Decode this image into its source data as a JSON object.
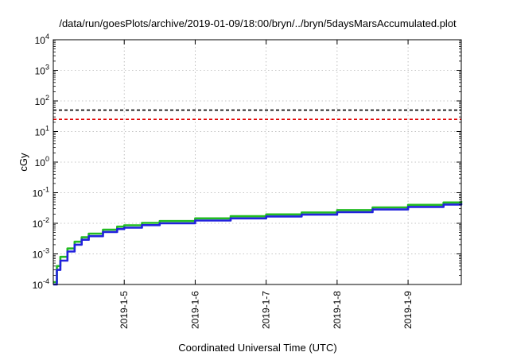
{
  "chart_data": {
    "type": "line",
    "title": "/data/run/goesPlots/archive/2019-01-09/18:00/bryn/../bryn/5daysMarsAccumulated.plot",
    "xlabel": "Coordinated Universal Time (UTC)",
    "ylabel": "cGy",
    "y_scale": "log",
    "ylim": [
      0.0001,
      10000
    ],
    "xlim": [
      "2019-01-04 00:00",
      "2019-01-09 18:00"
    ],
    "grid": true,
    "y_ticks": [
      {
        "base": "10",
        "exp": "-4"
      },
      {
        "base": "10",
        "exp": "-3"
      },
      {
        "base": "10",
        "exp": "-2"
      },
      {
        "base": "10",
        "exp": "-1"
      },
      {
        "base": "10",
        "exp": "0"
      },
      {
        "base": "10",
        "exp": "1"
      },
      {
        "base": "10",
        "exp": "2"
      },
      {
        "base": "10",
        "exp": "3"
      },
      {
        "base": "10",
        "exp": "4"
      }
    ],
    "x_ticks": [
      "2019-1-5",
      "2019-1-6",
      "2019-1-7",
      "2019-1-8",
      "2019-1-9"
    ],
    "reference_lines": [
      {
        "y": 50,
        "color": "#000000",
        "style": "dashed"
      },
      {
        "y": 25,
        "color": "#e00000",
        "style": "dashed"
      }
    ],
    "series": [
      {
        "color": "#22bb22",
        "x": [
          "2019-01-04 00:00",
          "2019-01-04 01:12",
          "2019-01-04 02:24",
          "2019-01-04 04:48",
          "2019-01-04 07:12",
          "2019-01-04 09:36",
          "2019-01-04 12:00",
          "2019-01-04 16:48",
          "2019-01-04 21:36",
          "2019-01-05 00:00",
          "2019-01-05 06:00",
          "2019-01-05 12:00",
          "2019-01-06 00:00",
          "2019-01-06 12:00",
          "2019-01-07 00:00",
          "2019-01-07 12:00",
          "2019-01-08 00:00",
          "2019-01-08 12:00",
          "2019-01-09 00:00",
          "2019-01-09 12:00",
          "2019-01-09 18:00"
        ],
        "values": [
          0.00012,
          0.0004,
          0.0008,
          0.0015,
          0.0025,
          0.0035,
          0.0046,
          0.0062,
          0.0078,
          0.0086,
          0.0103,
          0.0118,
          0.0145,
          0.017,
          0.0195,
          0.0225,
          0.027,
          0.033,
          0.04,
          0.048,
          0.053
        ]
      },
      {
        "color": "#2222dd",
        "x": [
          "2019-01-04 00:00",
          "2019-01-04 01:12",
          "2019-01-04 02:24",
          "2019-01-04 04:48",
          "2019-01-04 07:12",
          "2019-01-04 09:36",
          "2019-01-04 12:00",
          "2019-01-04 16:48",
          "2019-01-04 21:36",
          "2019-01-05 00:00",
          "2019-01-05 06:00",
          "2019-01-05 12:00",
          "2019-01-06 00:00",
          "2019-01-06 12:00",
          "2019-01-07 00:00",
          "2019-01-07 12:00",
          "2019-01-08 00:00",
          "2019-01-08 12:00",
          "2019-01-09 00:00",
          "2019-01-09 12:00",
          "2019-01-09 18:00"
        ],
        "values": [
          0.0001,
          0.0003,
          0.0006,
          0.0012,
          0.002,
          0.0029,
          0.0038,
          0.0052,
          0.0065,
          0.0072,
          0.0087,
          0.01,
          0.0123,
          0.0145,
          0.0167,
          0.0192,
          0.0231,
          0.0283,
          0.0343,
          0.041,
          0.0448
        ]
      }
    ]
  }
}
